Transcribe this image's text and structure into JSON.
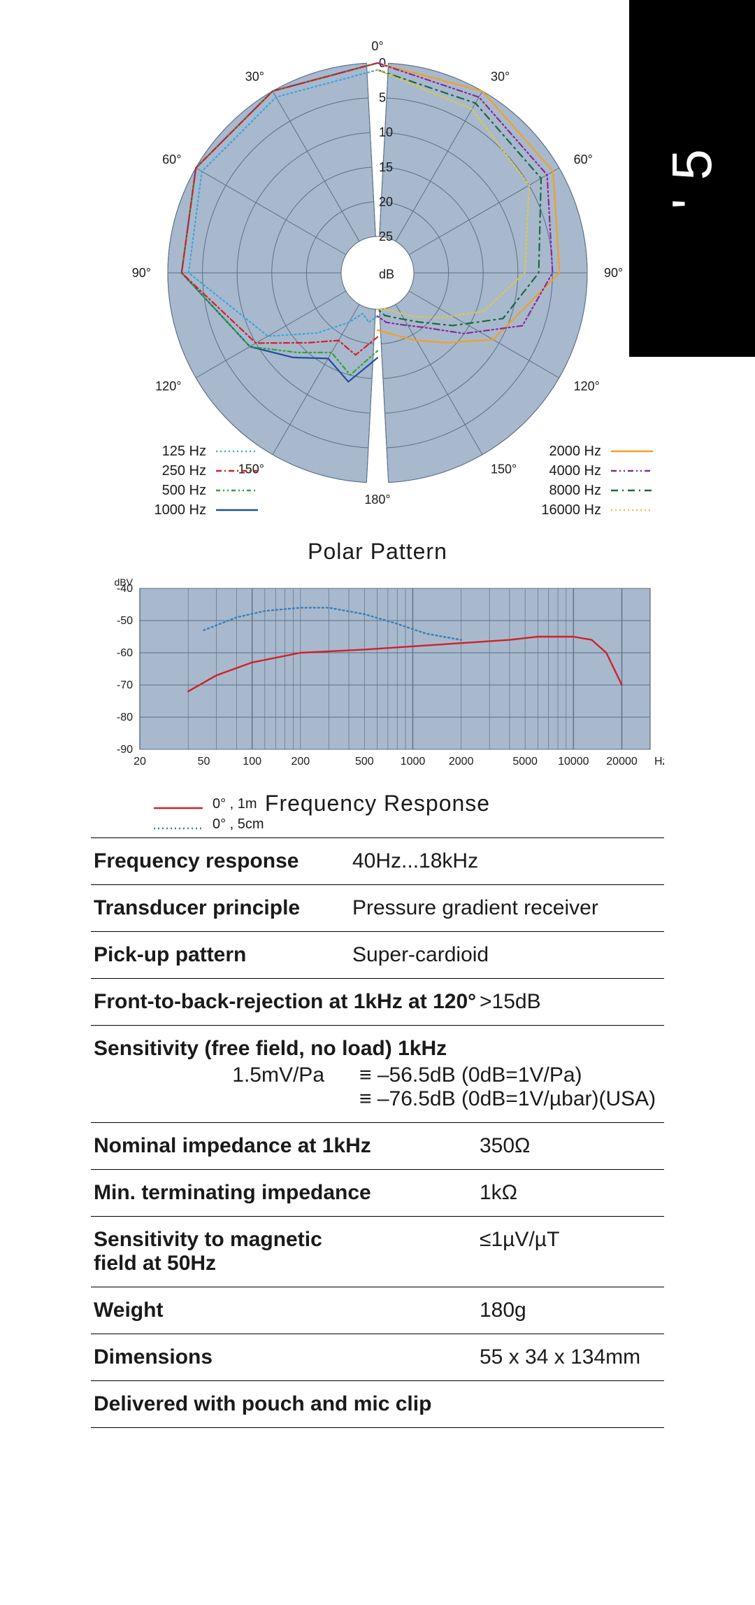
{
  "side_tab": "' 5",
  "polar": {
    "title": "Polar Pattern",
    "type": "polar",
    "background_color": "#a8b9cd",
    "grid_color": "#5b6f87",
    "db_unit_label": "dB",
    "center_fill": "#ffffff",
    "radial_ticks": [
      0,
      5,
      10,
      15,
      20,
      25
    ],
    "angle_labels": [
      "0°",
      "30°",
      "60°",
      "90°",
      "120°",
      "150°",
      "180°",
      "150°",
      "120°",
      "90°",
      "60°",
      "30°"
    ],
    "left_legend": [
      {
        "label": "125 Hz",
        "color": "#3aa6e0",
        "dash": "2 4",
        "width": 2.2
      },
      {
        "label": "250 Hz",
        "color": "#d22028",
        "dash": "8 4 2 4",
        "width": 2.2
      },
      {
        "label": "500 Hz",
        "color": "#2fa43a",
        "dash": "6 4 2 4 2 4",
        "width": 2.2
      },
      {
        "label": "1000 Hz",
        "color": "#1f4fa2",
        "dash": "",
        "width": 2.2
      }
    ],
    "right_legend": [
      {
        "label": "2000 Hz",
        "color": "#f4a020",
        "dash": "",
        "width": 2.2
      },
      {
        "label": "4000 Hz",
        "color": "#8a2a9a",
        "dash": "8 4 2 4 2 4",
        "width": 2.2
      },
      {
        "label": "8000 Hz",
        "color": "#1a6a3a",
        "dash": "10 6 2 6",
        "width": 2.2
      },
      {
        "label": "16000 Hz",
        "color": "#e0c93a",
        "dash": "2 4",
        "width": 2.2
      }
    ],
    "left_curves": {
      "125": [
        [
          0,
          1
        ],
        [
          30,
          1
        ],
        [
          60,
          1
        ],
        [
          90,
          3
        ],
        [
          120,
          12
        ],
        [
          135,
          18
        ],
        [
          150,
          22
        ],
        [
          160,
          24
        ],
        [
          170,
          23
        ],
        [
          180,
          24
        ]
      ],
      "250": [
        [
          0,
          0
        ],
        [
          30,
          0
        ],
        [
          60,
          0
        ],
        [
          90,
          2
        ],
        [
          120,
          10
        ],
        [
          135,
          16
        ],
        [
          150,
          19
        ],
        [
          165,
          18
        ],
        [
          180,
          21
        ]
      ],
      "500": [
        [
          0,
          0
        ],
        [
          30,
          0
        ],
        [
          60,
          0
        ],
        [
          90,
          2
        ],
        [
          120,
          9
        ],
        [
          135,
          14
        ],
        [
          150,
          17
        ],
        [
          165,
          15
        ],
        [
          180,
          19
        ]
      ],
      "1000": [
        [
          0,
          0
        ],
        [
          30,
          0
        ],
        [
          60,
          0
        ],
        [
          90,
          2
        ],
        [
          120,
          9
        ],
        [
          135,
          13
        ],
        [
          150,
          16
        ],
        [
          165,
          14
        ],
        [
          180,
          18
        ]
      ]
    },
    "right_curves": {
      "2000": [
        [
          0,
          0
        ],
        [
          30,
          0
        ],
        [
          60,
          1
        ],
        [
          90,
          4
        ],
        [
          120,
          11
        ],
        [
          135,
          16
        ],
        [
          150,
          19
        ],
        [
          165,
          21
        ],
        [
          180,
          22
        ]
      ],
      "4000": [
        [
          0,
          0
        ],
        [
          30,
          1
        ],
        [
          60,
          2
        ],
        [
          90,
          5
        ],
        [
          110,
          8
        ],
        [
          125,
          15
        ],
        [
          140,
          20
        ],
        [
          155,
          22
        ],
        [
          170,
          23
        ],
        [
          180,
          24
        ]
      ],
      "8000": [
        [
          0,
          1
        ],
        [
          30,
          2
        ],
        [
          60,
          3
        ],
        [
          90,
          7
        ],
        [
          110,
          11
        ],
        [
          125,
          17
        ],
        [
          140,
          21
        ],
        [
          155,
          23
        ],
        [
          170,
          24
        ],
        [
          180,
          25
        ]
      ],
      "16000": [
        [
          0,
          1
        ],
        [
          30,
          3
        ],
        [
          60,
          5
        ],
        [
          90,
          9
        ],
        [
          110,
          14
        ],
        [
          125,
          19
        ],
        [
          140,
          22
        ],
        [
          155,
          24
        ],
        [
          170,
          25
        ],
        [
          180,
          25
        ]
      ]
    }
  },
  "freq_response": {
    "title": "Frequency Response",
    "type": "line-log-x",
    "background_color": "#a8b9cd",
    "axis_color": "#000000",
    "grid_color": "#5b6f87",
    "x_label_color": "#1a1a1a",
    "x_min": 20,
    "x_max": 30000,
    "y_min": -90,
    "y_max": -40,
    "y_step": 10,
    "y_unit": "dBV",
    "x_unit": "Hz",
    "x_ticks": [
      20,
      50,
      100,
      200,
      500,
      1000,
      2000,
      5000,
      10000,
      20000
    ],
    "legend": [
      {
        "label": "0° , 1m",
        "color": "#d22028",
        "dash": ""
      },
      {
        "label": "0° , 5cm",
        "color": "#3a7db8",
        "dash": "2 4"
      }
    ],
    "series": {
      "0_1m": [
        [
          40,
          -72
        ],
        [
          60,
          -67
        ],
        [
          100,
          -63
        ],
        [
          200,
          -60
        ],
        [
          500,
          -59
        ],
        [
          1000,
          -58
        ],
        [
          2000,
          -57
        ],
        [
          4000,
          -56
        ],
        [
          6000,
          -55
        ],
        [
          8000,
          -55
        ],
        [
          10000,
          -55
        ],
        [
          13000,
          -56
        ],
        [
          16000,
          -60
        ],
        [
          20000,
          -70
        ]
      ],
      "0_5cm": [
        [
          50,
          -53
        ],
        [
          80,
          -49
        ],
        [
          120,
          -47
        ],
        [
          200,
          -46
        ],
        [
          300,
          -46
        ],
        [
          500,
          -48
        ],
        [
          800,
          -51
        ],
        [
          1200,
          -54
        ],
        [
          2000,
          -56
        ]
      ]
    }
  },
  "specs": {
    "rows": [
      {
        "label": "Frequency response",
        "value": "40Hz...18kHz",
        "layout": "kv-left"
      },
      {
        "label": "Transducer principle",
        "value": "Pressure gradient receiver",
        "layout": "kv-left"
      },
      {
        "label": "Pick-up pattern",
        "value": "Super-cardioid",
        "layout": "kv-left"
      },
      {
        "label": "Front-to-back-rejection at 1kHz at 120°",
        "value": ">15dB",
        "layout": "kv-right"
      },
      {
        "label": "Sensitivity (free field, no load) 1kHz",
        "sub": {
          "c1": "1.5mV/Pa",
          "c2a": "≡ –56.5dB (0dB=1V/Pa)",
          "c2b": "≡ –76.5dB (0dB=1V/µbar)(USA)"
        },
        "layout": "sens"
      },
      {
        "label": "Nominal impedance at 1kHz",
        "value": "350Ω",
        "layout": "kv-right"
      },
      {
        "label": "Min. terminating impedance",
        "value": "1kΩ",
        "layout": "kv-right"
      },
      {
        "label": "Sensitivity to magnetic field at 50Hz",
        "value": "≤1µV/µT",
        "layout": "kv-right-2line"
      },
      {
        "label": "Weight",
        "value": "180g",
        "layout": "kv-right"
      },
      {
        "label": "Dimensions",
        "value": "55 x 34 x 134mm",
        "layout": "kv-right"
      },
      {
        "label": "Delivered with pouch and mic clip",
        "value": "",
        "layout": "label-only"
      }
    ]
  }
}
